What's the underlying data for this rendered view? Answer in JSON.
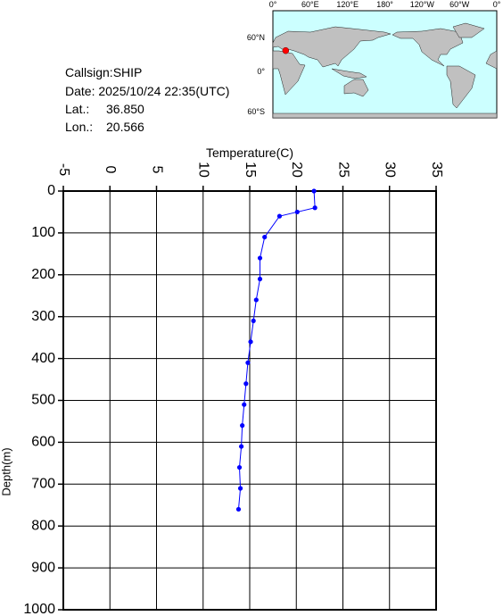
{
  "info": {
    "callsign": "Callsign:SHIP",
    "date": "Date:  2025/10/24 22:35(UTC)",
    "lat_label": "Lat.:",
    "lat": "36.850",
    "lon_label": "Lon.:",
    "lon": "20.566"
  },
  "map": {
    "lon_labels": [
      "0°",
      "60°E",
      "120°E",
      "180°",
      "120°W",
      "60°W",
      "0°"
    ],
    "lat_labels": [
      "60°N",
      "0°",
      "60°S"
    ]
  },
  "chart_data": {
    "type": "line",
    "xlabel": "Temperature(C)",
    "ylabel": "Depth(m)",
    "x": [
      21.9,
      22.0,
      20.1,
      18.2,
      16.6,
      16.1,
      16.1,
      15.7,
      15.4,
      15.1,
      14.8,
      14.6,
      14.4,
      14.2,
      14.1,
      13.9,
      14.0,
      13.8
    ],
    "series": [
      {
        "color": "#0000ff",
        "values": [
          0,
          40,
          50,
          60,
          110,
          160,
          210,
          260,
          310,
          360,
          410,
          460,
          510,
          560,
          610,
          660,
          710,
          760
        ]
      }
    ],
    "xlim": [
      -5,
      35
    ],
    "xticks": [
      -5,
      0,
      5,
      10,
      15,
      20,
      25,
      30,
      35
    ],
    "ylim": [
      0,
      1000
    ],
    "yticks": [
      0,
      100,
      200,
      300,
      400,
      500,
      600,
      700,
      800,
      900,
      1000
    ],
    "y_inverted": true,
    "x_axis_position": "top",
    "grid": true
  }
}
